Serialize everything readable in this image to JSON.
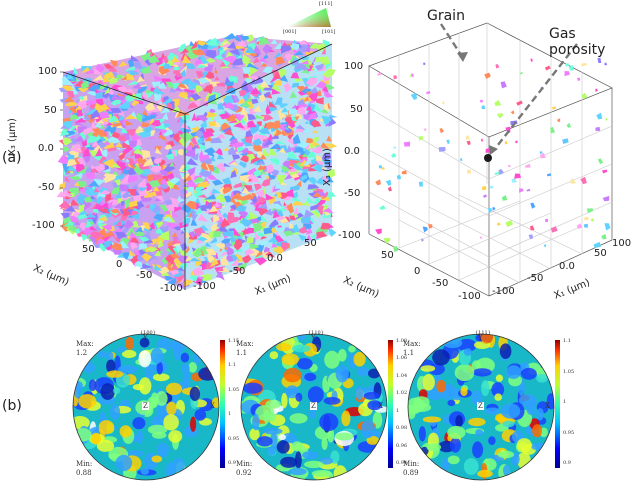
{
  "panel_labels": {
    "a": "(a)",
    "b": "(b)"
  },
  "ipf_key": {
    "top": "[111]",
    "left": "[001]",
    "right": "[101]"
  },
  "cube": {
    "x3_label": "X₃ (μm)",
    "x2_label": "X₂ (μm)",
    "x1_label": "X₁ (μm)",
    "x3_ticks": [
      "100",
      "50",
      "0.0",
      "-50",
      "-100"
    ],
    "x2_ticks": [
      "50",
      "0",
      "-50",
      "-100"
    ],
    "x1_ticks": [
      "-100",
      "-50",
      "0.0",
      "50"
    ]
  },
  "porosity_plot": {
    "annotations": {
      "grain": "Grain",
      "gas_porosity": "Gas porosity"
    },
    "x3_label": "X₃ (μm)",
    "x2_label": "X₂ (μm)",
    "x1_label": "X₁ (μm)",
    "x3_ticks": [
      "100",
      "50",
      "0.0",
      "-50",
      "-100"
    ],
    "x2_ticks": [
      "50",
      "0",
      "-50",
      "-100"
    ],
    "x1_ticks": [
      "-100",
      "-50",
      "0.0",
      "50",
      "100"
    ]
  },
  "pole_figures": [
    {
      "title": "{100}",
      "max_label": "Max:",
      "max_value": "1.2",
      "min_label": "Min:",
      "min_value": "0.88",
      "top_axis": "Y",
      "right_axis": "X",
      "center": "Z",
      "cbar_ticks": [
        "1.15",
        "1.1",
        "1.05",
        "1",
        "0.95",
        "0.9"
      ]
    },
    {
      "title": "{110}",
      "max_label": "Max:",
      "max_value": "1.1",
      "min_label": "Min:",
      "min_value": "0.92",
      "top_axis": "Y",
      "right_axis": "X",
      "center": "Z",
      "cbar_ticks": [
        "1.08",
        "1.06",
        "1.04",
        "1.02",
        "1",
        "0.98",
        "0.96",
        "0.94"
      ]
    },
    {
      "title": "{111}",
      "max_label": "Max:",
      "max_value": "1.1",
      "min_label": "Min:",
      "min_value": "0.89",
      "top_axis": "Y",
      "right_axis": "X",
      "center": "Z",
      "cbar_ticks": [
        "1.1",
        "1.05",
        "1",
        "0.95",
        "0.9"
      ]
    }
  ]
}
